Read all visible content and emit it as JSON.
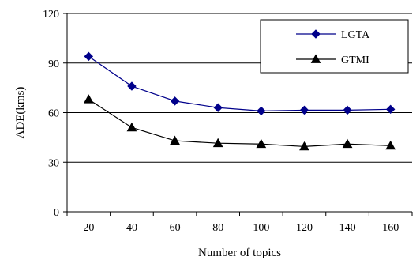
{
  "chart_data": {
    "type": "line",
    "categories": [
      "20",
      "40",
      "60",
      "80",
      "100",
      "120",
      "140",
      "160"
    ],
    "x": [
      20,
      40,
      60,
      80,
      100,
      120,
      140,
      160
    ],
    "series": [
      {
        "name": "LGTA",
        "values": [
          94,
          76,
          67,
          63,
          61,
          61.5,
          61.5,
          62
        ],
        "color": "#00008b",
        "marker": "diamond"
      },
      {
        "name": "GTMI",
        "values": [
          68,
          51,
          43,
          41.5,
          41,
          39.5,
          41,
          40
        ],
        "color": "#000000",
        "marker": "triangle"
      }
    ],
    "title": "",
    "xlabel": "Number of topics",
    "ylabel": "ADE(kms)",
    "ylim": [
      0,
      120
    ],
    "yticks": [
      "0",
      "30",
      "60",
      "90",
      "120"
    ],
    "grid": "horizontal",
    "legend_position": "top-right"
  }
}
